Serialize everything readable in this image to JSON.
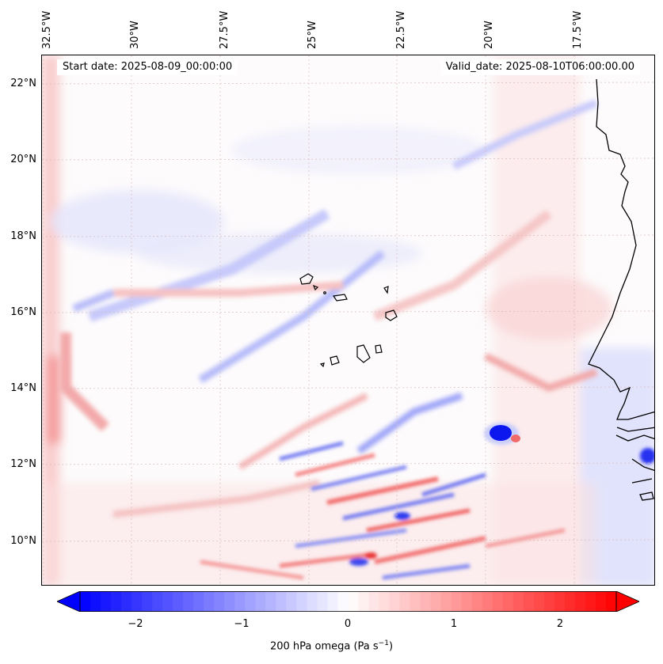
{
  "map": {
    "start_date": "Start date: 2025-08-09_00:00:00",
    "valid_date": "Valid_date: 2025-08-10T06:00:00.00",
    "longitude_labels": [
      "32.5°W",
      "30°W",
      "27.5°W",
      "25°W",
      "22.5°W",
      "20°W",
      "17.5°W"
    ],
    "latitude_labels": [
      "22°N",
      "20°N",
      "18°N",
      "16°N",
      "14°N",
      "12°N",
      "10°N"
    ],
    "field": "200 hPa omega",
    "features": [
      "Cape Verde islands",
      "West African coastline (Senegal, Gambia, Guinea-Bissau)"
    ]
  },
  "colorbar": {
    "label_main": "200 hPa omega (Pa s",
    "label_exp": "−1",
    "label_close": ")",
    "ticks": [
      "−2",
      "−1",
      "0",
      "1",
      "2"
    ],
    "min": -2.6,
    "max": 2.6,
    "colormap": "bwr",
    "low_color": "#0000ff",
    "mid_color": "#ffffff",
    "high_color": "#ff0000"
  }
}
